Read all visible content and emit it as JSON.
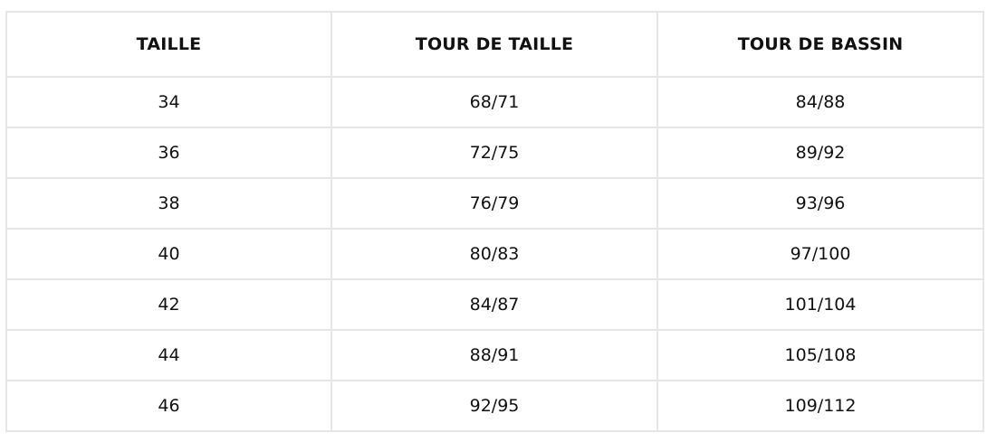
{
  "table": {
    "headers": [
      "TAILLE",
      "TOUR DE TAILLE",
      "TOUR DE BASSIN"
    ],
    "rows": [
      [
        "34",
        "68/71",
        "84/88"
      ],
      [
        "36",
        "72/75",
        "89/92"
      ],
      [
        "38",
        "76/79",
        "93/96"
      ],
      [
        "40",
        "80/83",
        "97/100"
      ],
      [
        "42",
        "84/87",
        "101/104"
      ],
      [
        "44",
        "88/91",
        "105/108"
      ],
      [
        "46",
        "92/95",
        "109/112"
      ]
    ]
  }
}
